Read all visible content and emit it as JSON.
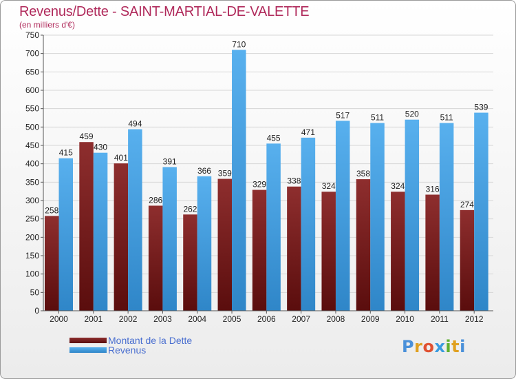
{
  "chart_data": {
    "type": "bar",
    "title": "Revenus/Dette - SAINT-MARTIAL-DE-VALETTE",
    "subtitle": "(en milliers d'€)",
    "categories": [
      "2000",
      "2001",
      "2002",
      "2003",
      "2004",
      "2005",
      "2006",
      "2007",
      "2008",
      "2009",
      "2010",
      "2011",
      "2012"
    ],
    "series": [
      {
        "name": "Montant de la Dette",
        "color": "#7a1c1c",
        "values": [
          258,
          459,
          401,
          286,
          262,
          359,
          329,
          338,
          324,
          358,
          324,
          316,
          274
        ]
      },
      {
        "name": "Revenus",
        "color": "#3a9be0",
        "values": [
          415,
          430,
          494,
          391,
          366,
          710,
          455,
          471,
          517,
          511,
          520,
          511,
          539
        ]
      }
    ],
    "ylim": [
      0,
      750
    ],
    "yticks": [
      0,
      50,
      100,
      150,
      200,
      250,
      300,
      350,
      400,
      450,
      500,
      550,
      600,
      650,
      700,
      750
    ],
    "grid": true,
    "legend_position": "bottom-left"
  },
  "logo": {
    "letters": [
      "P",
      "r",
      "o",
      "x",
      "i",
      "t",
      "i"
    ],
    "colors": [
      "#4a90d9",
      "#e0a020",
      "#e05030",
      "#3a9be0",
      "#60b030",
      "#e0a020",
      "#4a90d9"
    ]
  }
}
